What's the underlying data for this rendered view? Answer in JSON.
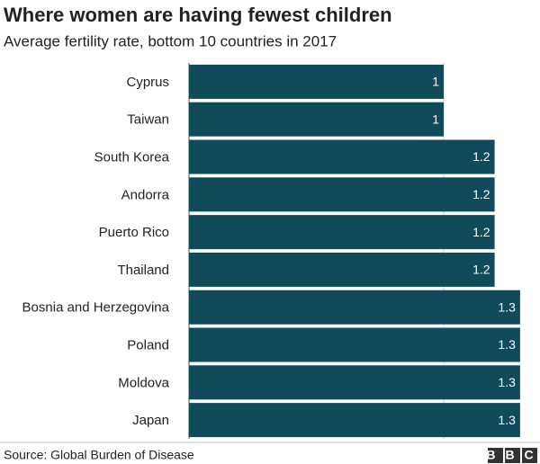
{
  "chart_data": {
    "type": "barh",
    "title": "Where women are having fewest children",
    "subtitle": "Average fertility rate, bottom 10 countries in 2017",
    "categories": [
      "Cyprus",
      "Taiwan",
      "South Korea",
      "Andorra",
      "Puerto Rico",
      "Thailand",
      "Bosnia and Herzegovina",
      "Poland",
      "Moldova",
      "Japan"
    ],
    "values": [
      1,
      1,
      1.2,
      1.2,
      1.2,
      1.2,
      1.3,
      1.3,
      1.3,
      1.3
    ],
    "color": "#0f4b5b",
    "xlim": [
      0,
      1.3
    ],
    "xticks": [
      0,
      1
    ],
    "grid": true,
    "source": "Source: Global Burden of Disease",
    "logo": "BBC"
  }
}
